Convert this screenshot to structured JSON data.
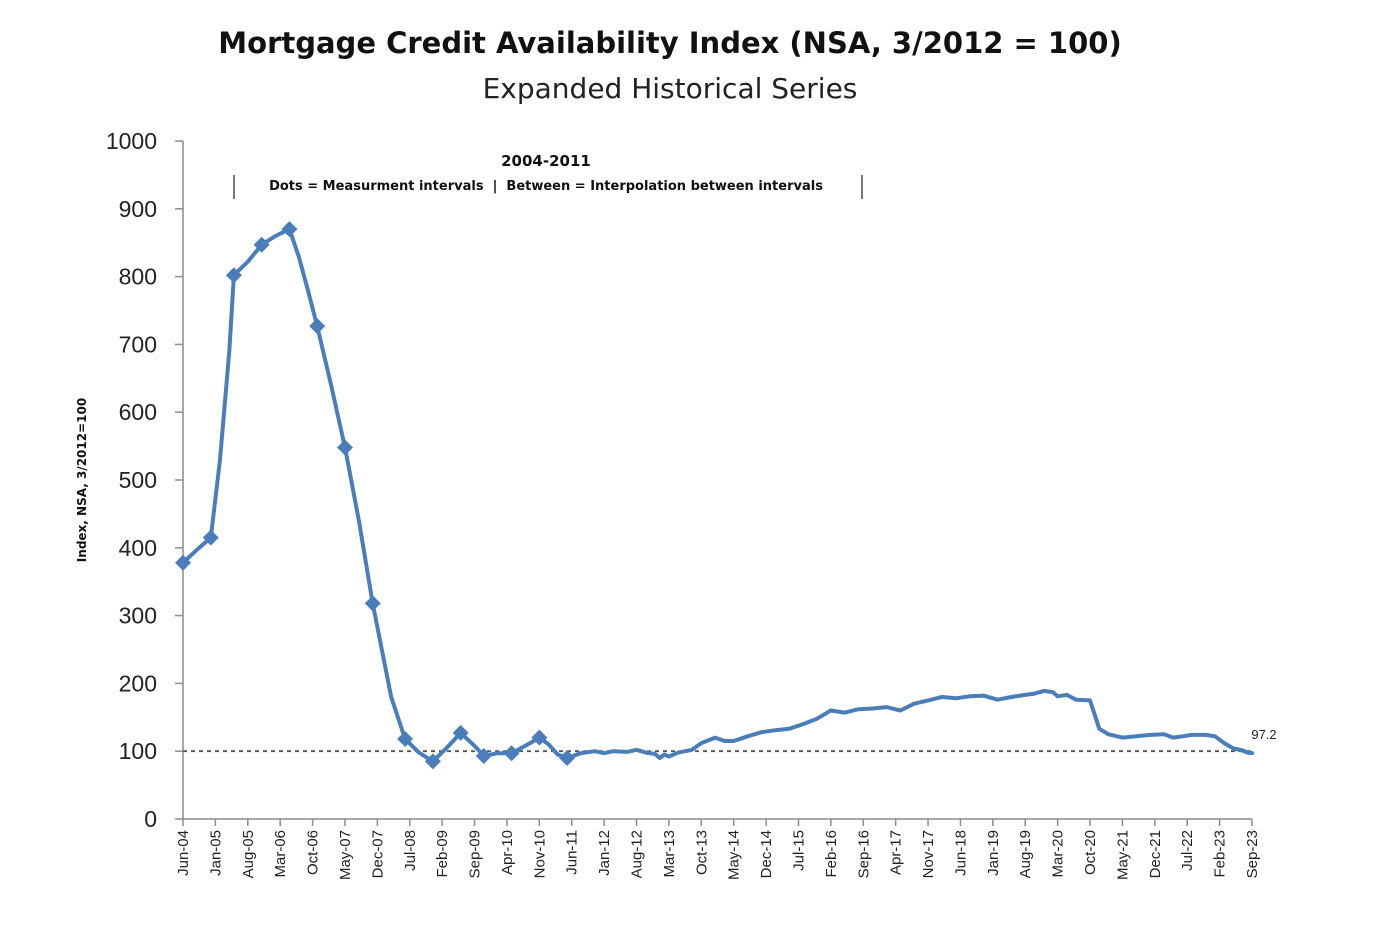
{
  "chart_data": {
    "type": "line",
    "title": "Mortgage Credit Availability Index (NSA, 3/2012 = 100)",
    "subtitle": "Expanded Historical Series",
    "ylabel": "Index, NSA, 3/2012=100",
    "xlabel": "",
    "ylim": [
      0,
      1000
    ],
    "yticks": [
      "0",
      "100",
      "200",
      "300",
      "400",
      "500",
      "600",
      "700",
      "800",
      "900",
      "1000"
    ],
    "xlim": [
      "2004-06",
      "2023-09"
    ],
    "xticks": [
      "Jun-04",
      "Jan-05",
      "Aug-05",
      "Mar-06",
      "Oct-06",
      "May-07",
      "Dec-07",
      "Jul-08",
      "Feb-09",
      "Sep-09",
      "Apr-10",
      "Nov-10",
      "Jun-11",
      "Jan-12",
      "Aug-12",
      "Mar-13",
      "Oct-13",
      "May-14",
      "Dec-14",
      "Jul-15",
      "Feb-16",
      "Sep-16",
      "Apr-17",
      "Nov-17",
      "Jun-18",
      "Jan-19",
      "Aug-19",
      "Mar-20",
      "Oct-20",
      "May-21",
      "Dec-21",
      "Jul-22",
      "Feb-23",
      "Sep-23"
    ],
    "grid": false,
    "reference_line": {
      "y": 100,
      "style": "dashed"
    },
    "annotation": {
      "title": "2004-2011",
      "text": "Dots = Measurment intervals  |  Between = Interpolation between intervals"
    },
    "end_label": "97.2",
    "colors": {
      "series": "#4a7ebb",
      "reference": "#555555"
    },
    "series": [
      {
        "points": [
          [
            "2004-06",
            378
          ],
          [
            "2004-09",
            397
          ],
          [
            "2004-12",
            415
          ],
          [
            "2005-02",
            530
          ],
          [
            "2005-04",
            690
          ],
          [
            "2005-05",
            802
          ],
          [
            "2005-08",
            822
          ],
          [
            "2005-11",
            847
          ],
          [
            "2006-02",
            860
          ],
          [
            "2006-05",
            870
          ],
          [
            "2006-07",
            830
          ],
          [
            "2006-09",
            780
          ],
          [
            "2006-11",
            727
          ],
          [
            "2007-02",
            640
          ],
          [
            "2007-05",
            548
          ],
          [
            "2007-08",
            440
          ],
          [
            "2007-11",
            318
          ],
          [
            "2008-03",
            180
          ],
          [
            "2008-06",
            118
          ],
          [
            "2008-09",
            98
          ],
          [
            "2008-12",
            85
          ],
          [
            "2009-03",
            105
          ],
          [
            "2009-06",
            127
          ],
          [
            "2009-09",
            108
          ],
          [
            "2009-11",
            93
          ],
          [
            "2010-02",
            97
          ],
          [
            "2010-05",
            97
          ],
          [
            "2010-09",
            112
          ],
          [
            "2010-11",
            120
          ],
          [
            "2011-01",
            110
          ],
          [
            "2011-03",
            95
          ],
          [
            "2011-05",
            90
          ],
          [
            "2011-08",
            97
          ],
          [
            "2011-11",
            100
          ],
          [
            "2012-01",
            97
          ],
          [
            "2012-03",
            100
          ],
          [
            "2012-06",
            99
          ],
          [
            "2012-08",
            102
          ],
          [
            "2012-10",
            98
          ],
          [
            "2012-12",
            96
          ],
          [
            "2013-01",
            90
          ],
          [
            "2013-02",
            95
          ],
          [
            "2013-03",
            92
          ],
          [
            "2013-05",
            98
          ],
          [
            "2013-08",
            102
          ],
          [
            "2013-10",
            112
          ],
          [
            "2014-01",
            120
          ],
          [
            "2014-03",
            115
          ],
          [
            "2014-05",
            115
          ],
          [
            "2014-08",
            122
          ],
          [
            "2014-11",
            128
          ],
          [
            "2015-02",
            131
          ],
          [
            "2015-05",
            133
          ],
          [
            "2015-08",
            140
          ],
          [
            "2015-11",
            148
          ],
          [
            "2016-02",
            160
          ],
          [
            "2016-05",
            157
          ],
          [
            "2016-08",
            162
          ],
          [
            "2016-11",
            163
          ],
          [
            "2017-02",
            165
          ],
          [
            "2017-05",
            160
          ],
          [
            "2017-08",
            170
          ],
          [
            "2017-11",
            175
          ],
          [
            "2018-02",
            180
          ],
          [
            "2018-05",
            178
          ],
          [
            "2018-08",
            181
          ],
          [
            "2018-11",
            182
          ],
          [
            "2019-02",
            176
          ],
          [
            "2019-05",
            180
          ],
          [
            "2019-08",
            183
          ],
          [
            "2019-10",
            185
          ],
          [
            "2019-12",
            189
          ],
          [
            "2020-02",
            187
          ],
          [
            "2020-03",
            181
          ],
          [
            "2020-05",
            183
          ],
          [
            "2020-07",
            176
          ],
          [
            "2020-10",
            175
          ],
          [
            "2020-12",
            133
          ],
          [
            "2021-02",
            125
          ],
          [
            "2021-05",
            120
          ],
          [
            "2021-08",
            122
          ],
          [
            "2021-11",
            124
          ],
          [
            "2022-02",
            125
          ],
          [
            "2022-04",
            120
          ],
          [
            "2022-06",
            122
          ],
          [
            "2022-08",
            124
          ],
          [
            "2022-11",
            124
          ],
          [
            "2023-01",
            122
          ],
          [
            "2023-03",
            112
          ],
          [
            "2023-05",
            104
          ],
          [
            "2023-07",
            101
          ],
          [
            "2023-08",
            98
          ],
          [
            "2023-09",
            97.2
          ]
        ],
        "markers": [
          [
            "2004-06",
            378
          ],
          [
            "2004-12",
            415
          ],
          [
            "2005-05",
            802
          ],
          [
            "2005-11",
            847
          ],
          [
            "2006-05",
            870
          ],
          [
            "2006-11",
            727
          ],
          [
            "2007-05",
            548
          ],
          [
            "2007-11",
            318
          ],
          [
            "2008-06",
            118
          ],
          [
            "2008-12",
            85
          ],
          [
            "2009-06",
            127
          ],
          [
            "2009-11",
            93
          ],
          [
            "2010-05",
            97
          ],
          [
            "2010-11",
            120
          ],
          [
            "2011-05",
            90
          ]
        ]
      }
    ]
  }
}
